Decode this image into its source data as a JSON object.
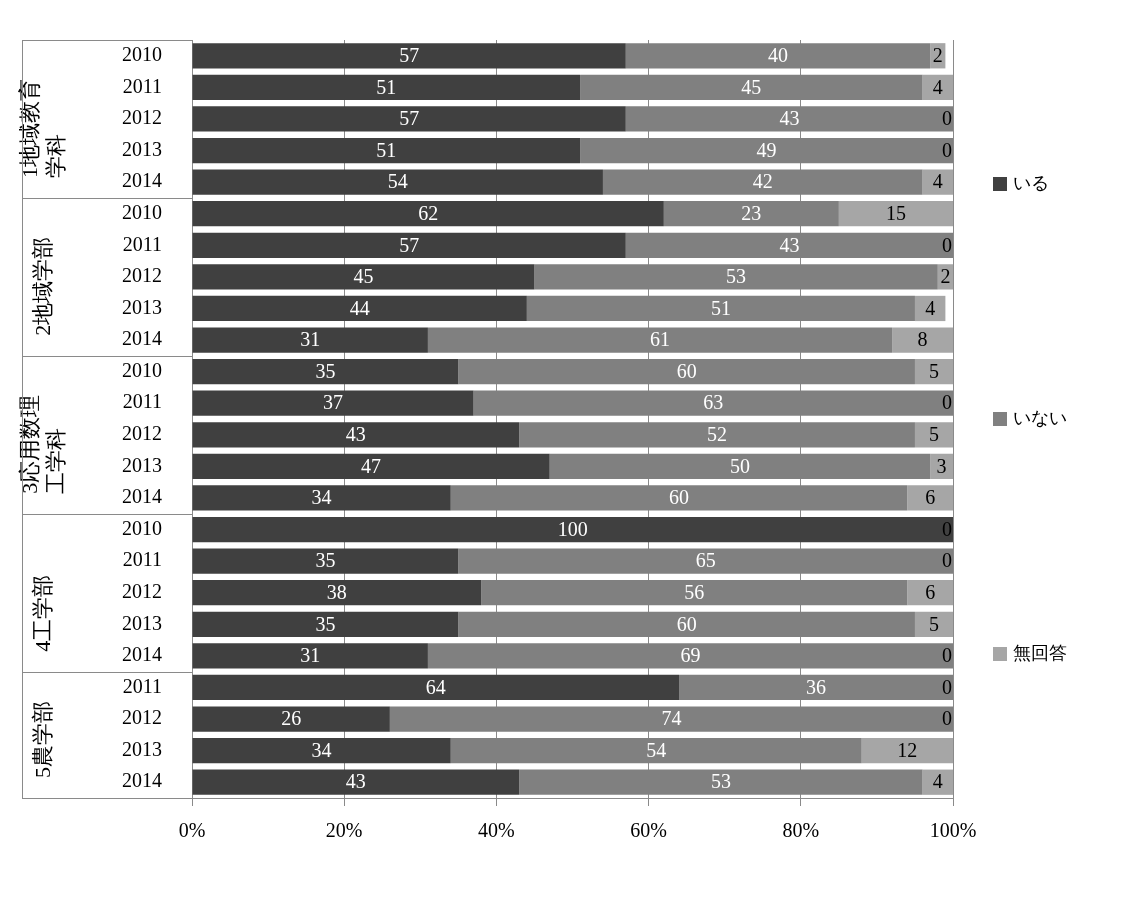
{
  "chart_data": {
    "type": "bar",
    "orientation": "horizontal",
    "stacked": true,
    "categories": [
      "2010",
      "2011",
      "2012",
      "2013",
      "2014",
      "2010",
      "2011",
      "2012",
      "2013",
      "2014",
      "2010",
      "2011",
      "2012",
      "2013",
      "2014",
      "2010",
      "2011",
      "2012",
      "2013",
      "2014",
      "2011",
      "2012",
      "2013",
      "2014"
    ],
    "series": [
      {
        "name": "いる",
        "color": "#404040",
        "values": [
          57,
          51,
          57,
          51,
          54,
          62,
          57,
          45,
          44,
          31,
          35,
          37,
          43,
          47,
          34,
          100,
          35,
          38,
          35,
          31,
          64,
          26,
          34,
          43
        ],
        "value_labels": [
          "57",
          "51",
          "57",
          "51",
          "54",
          "62",
          "57",
          "45",
          "44",
          "31",
          "35",
          "37",
          "43",
          "47",
          "34",
          "100",
          "35",
          "38",
          "35",
          "31",
          "64",
          "26",
          "34",
          "43"
        ]
      },
      {
        "name": "いない",
        "color": "#808080",
        "values": [
          40,
          45,
          43,
          49,
          42,
          23,
          43,
          53,
          51,
          61,
          60,
          63,
          52,
          50,
          60,
          0,
          65,
          56,
          60,
          69,
          36,
          74,
          54,
          53
        ],
        "value_labels": [
          "40",
          "45",
          "43",
          "49",
          "42",
          "23",
          "43",
          "53",
          "51",
          "61",
          "60",
          "63",
          "52",
          "50",
          "60",
          null,
          "65",
          "56",
          "60",
          "69",
          "36",
          "74",
          "54",
          "53"
        ]
      },
      {
        "name": "無回答",
        "color": "#a6a6a6",
        "values": [
          2,
          4,
          0,
          0,
          4,
          15,
          0,
          2,
          4,
          8,
          5,
          0,
          5,
          3,
          6,
          0,
          0,
          6,
          5,
          0,
          0,
          0,
          12,
          4
        ],
        "value_labels": [
          "2",
          "4",
          "0",
          "0",
          "4",
          "15",
          "0",
          "2",
          "4",
          "8",
          "5",
          "0",
          "5",
          "3",
          "6",
          "0",
          "0",
          "6",
          "5",
          "0",
          "0",
          "0",
          "12",
          "4"
        ]
      }
    ],
    "xlim": [
      0,
      100
    ],
    "xticks": [
      {
        "value": 0,
        "label": "0%"
      },
      {
        "value": 20,
        "label": "20%"
      },
      {
        "value": 40,
        "label": "40%"
      },
      {
        "value": 60,
        "label": "60%"
      },
      {
        "value": 80,
        "label": "80%"
      },
      {
        "value": 100,
        "label": "100%"
      }
    ],
    "annotations": [
      "1地域教育学科",
      "2地域学部",
      "3応用数理工学科",
      "4工学部",
      "5農学部"
    ],
    "grid": "x",
    "legend": "right"
  }
}
